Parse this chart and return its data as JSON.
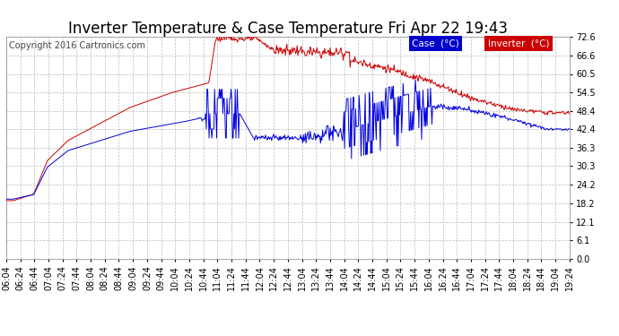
{
  "title": "Inverter Temperature & Case Temperature Fri Apr 22 19:43",
  "copyright": "Copyright 2016 Cartronics.com",
  "ylabel_values": [
    0.0,
    6.1,
    12.1,
    18.2,
    24.2,
    30.3,
    36.3,
    42.4,
    48.4,
    54.5,
    60.5,
    66.6,
    72.6
  ],
  "ylim": [
    0.0,
    72.6
  ],
  "x_labels": [
    "06:04",
    "06:24",
    "06:44",
    "07:04",
    "07:24",
    "07:44",
    "08:04",
    "08:24",
    "08:44",
    "09:04",
    "09:24",
    "09:44",
    "10:04",
    "10:24",
    "10:44",
    "11:04",
    "11:24",
    "11:44",
    "12:04",
    "12:24",
    "12:44",
    "13:04",
    "13:24",
    "13:44",
    "14:04",
    "14:24",
    "14:44",
    "15:04",
    "15:24",
    "15:44",
    "16:04",
    "16:24",
    "16:44",
    "17:04",
    "17:24",
    "17:44",
    "18:04",
    "18:24",
    "18:44",
    "19:04",
    "19:24"
  ],
  "bg_color": "#ffffff",
  "grid_color": "#bbbbbb",
  "case_color": "#0000dd",
  "inverter_color": "#cc0000",
  "legend_case_bg": "#0000cc",
  "legend_inverter_bg": "#cc0000",
  "legend_text_color": "#ffffff",
  "title_fontsize": 12,
  "copyright_fontsize": 7,
  "tick_fontsize": 7
}
